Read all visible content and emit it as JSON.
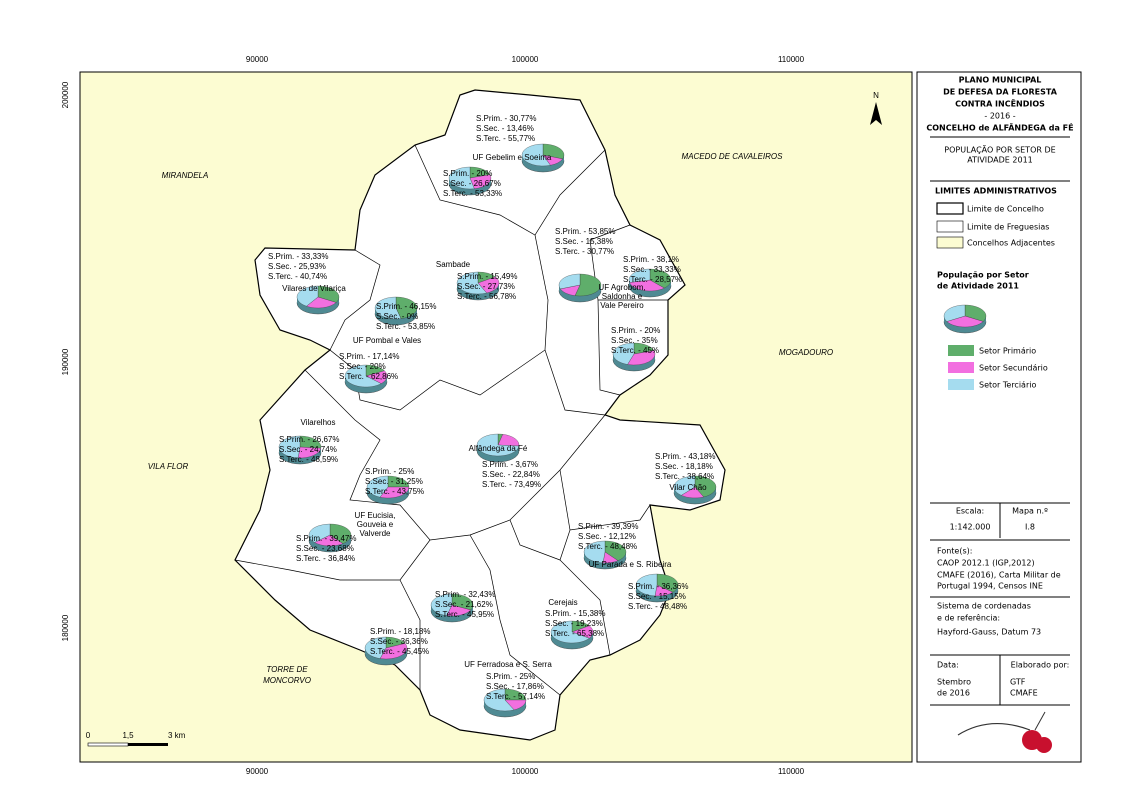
{
  "map": {
    "coords": {
      "top": [
        "90000",
        "100000",
        "110000"
      ],
      "left": [
        "200000",
        "190000",
        "180000"
      ]
    },
    "north": "N",
    "neighbors": [
      "MIRANDELA",
      "MACEDO DE CAVALEIROS",
      "MOGADOURO",
      "VILA FLOR",
      [
        "TORRE DE",
        "MONCORVO"
      ]
    ],
    "scale_bar": [
      "0",
      "1,5",
      "3 km"
    ],
    "sector_colors": [
      "#5fae6b",
      "#f26fe0",
      "#a5dcef"
    ],
    "parishes": [
      {
        "lines": [
          "S.Prim. - 30,77%",
          "S.Sec. - 13,46%",
          "S.Terc. - 55,77%"
        ],
        "values": [
          30.77,
          13.46,
          55.77
        ],
        "name": [
          "UF Gebelim e Soeima"
        ]
      },
      {
        "lines": [
          "S.Prim. - 20%",
          "S.Sec. - 26,67%",
          "S.Terc. - 53,33%"
        ],
        "values": [
          20,
          26.67,
          53.33
        ]
      },
      {
        "lines": [
          "S.Prim. - 33,33%",
          "S.Sec. - 25,93%",
          "S.Terc. - 40,74%"
        ],
        "values": [
          33.33,
          25.93,
          40.74
        ],
        "name": [
          "Vilares de Vilariça"
        ]
      },
      {
        "lines": [
          "S.Prim. - 15,49%",
          "S.Sec. - 27,73%",
          "S.Terc. - 56,78%"
        ],
        "values": [
          15.49,
          27.73,
          56.78
        ],
        "name": [
          "Sambade"
        ]
      },
      {
        "lines": [
          "S.Prim. - 53,85%",
          "S.Sec. - 15,38%",
          "S.Terc. - 30,77%"
        ],
        "values": [
          53.85,
          15.38,
          30.77
        ],
        "name": [
          "UF Agrobom,",
          "Saldonha e",
          "Vale Pereiro"
        ]
      },
      {
        "lines": [
          "S.Prim. - 38,1%",
          "S.Sec. - 33,33%",
          "S.Terc. - 28,57%"
        ],
        "values": [
          38.1,
          33.33,
          28.57
        ]
      },
      {
        "lines": [
          "S.Prim. - 46,15%",
          "S.Sec. - 0%",
          "S.Terc. - 53,85%"
        ],
        "values": [
          46.15,
          0,
          53.85
        ]
      },
      {
        "lines": [
          "S.Prim. - 17,14%",
          "S.Sec. - 20%",
          "S.Terc. - 62,86%"
        ],
        "values": [
          17.14,
          20,
          62.86
        ],
        "name": [
          "UF Pombal e Vales"
        ]
      },
      {
        "lines": [
          "S.Prim. - 20%",
          "S.Sec. - 35%",
          "S.Terc. - 45%"
        ],
        "values": [
          20,
          35,
          45
        ]
      },
      {
        "lines": [
          "S.Prim. - 26,67%",
          "S.Sec. - 24,74%",
          "S.Terc. - 48,59%"
        ],
        "values": [
          26.67,
          24.74,
          48.59
        ],
        "name": [
          "Vilarelhos"
        ]
      },
      {
        "lines": [
          "S.Prim. - 3,67%",
          "S.Sec. - 22,84%",
          "S.Terc. - 73,49%"
        ],
        "values": [
          3.67,
          22.84,
          73.49
        ],
        "name": [
          "Alfândega da Fé"
        ]
      },
      {
        "lines": [
          "S.Prim. - 43,18%",
          "S.Sec. - 18,18%",
          "S.Terc. - 38,64%"
        ],
        "values": [
          43.18,
          18.18,
          38.64
        ],
        "name": [
          "Vilar Chão"
        ]
      },
      {
        "lines": [
          "S.Prim. - 25%",
          "S.Sec. - 31,25%",
          "S.Terc. - 43,75%"
        ],
        "values": [
          25,
          31.25,
          43.75
        ]
      },
      {
        "lines": [
          "S.Prim. - 39,47%",
          "S.Sec. - 23,68%",
          "S.Terc. - 36,84%"
        ],
        "values": [
          39.47,
          23.68,
          36.84
        ],
        "name": [
          "UF Eucisia,",
          "Gouveia e",
          "Valverde"
        ]
      },
      {
        "lines": [
          "S.Prim. - 39,39%",
          "S.Sec. - 12,12%",
          "S.Terc. - 48,48%"
        ],
        "values": [
          39.39,
          12.12,
          48.48
        ],
        "name": [
          "UF Parada e S. Ribeira"
        ]
      },
      {
        "lines": [
          "S.Prim. - 36,36%",
          "S.Sec. - 15,15%",
          "S.Terc. - 48,48%"
        ],
        "values": [
          36.36,
          15.15,
          48.48
        ]
      },
      {
        "lines": [
          "S.Prim. - 32,43%",
          "S.Sec. - 21,62%",
          "S.Terc. - 45,95%"
        ],
        "values": [
          32.43,
          21.62,
          45.95
        ]
      },
      {
        "lines": [
          "S.Prim. - 15,38%",
          "S.Sec. - 19,23%",
          "S.Terc. - 65,38%"
        ],
        "values": [
          15.38,
          19.23,
          65.38
        ],
        "name": [
          "Cerejais"
        ]
      },
      {
        "lines": [
          "S.Prim. - 18,18%",
          "S.Sec. - 36,36%",
          "S.Terc. - 45,45%"
        ],
        "values": [
          18.18,
          36.36,
          45.45
        ]
      },
      {
        "lines": [
          "S.Prim. - 25%",
          "S.Sec. - 17,86%",
          "S.Terc. - 57,14%"
        ],
        "values": [
          25,
          17.86,
          57.14
        ],
        "name": [
          "UF Ferradosa e S. Serra"
        ]
      }
    ]
  },
  "panel": {
    "title": [
      "PLANO MUNICIPAL",
      "DE DEFESA DA FLORESTA",
      "CONTRA INCÊNDIOS",
      "- 2016 -",
      "CONCELHO de ALFÂNDEGA da FÉ"
    ],
    "subtitle": [
      "POPULAÇÃO POR SETOR DE",
      "ATIVIDADE 2011"
    ],
    "limits_title": "LIMITES ADMINISTRATIVOS",
    "limits": [
      "Limite de Concelho",
      "Limite de Freguesias",
      "Concelhos Adjacentes"
    ],
    "pie_title": [
      "População por Setor",
      "de Atividade 2011"
    ],
    "sectors": [
      "Setor Primário",
      "Setor Secundário",
      "Setor Terciário"
    ],
    "scale_label": "Escala:",
    "scale": "1:142.000",
    "map_label": "Mapa n.º",
    "map_no": "I.8",
    "sources": [
      "Fonte(s):",
      "CAOP 2012.1 (IGP,2012)",
      "CMAFE (2016), Carta Militar de",
      "Portugal 1994, Censos INE"
    ],
    "crs": [
      "Sistema de cordenadas",
      "e de referência:",
      "Hayford-Gauss, Datum 73"
    ],
    "date_label": "Data:",
    "date": [
      "Stembro",
      "de 2016"
    ],
    "author_label": "Elaborado por:",
    "author": [
      "GTF",
      "CMAFE"
    ]
  }
}
